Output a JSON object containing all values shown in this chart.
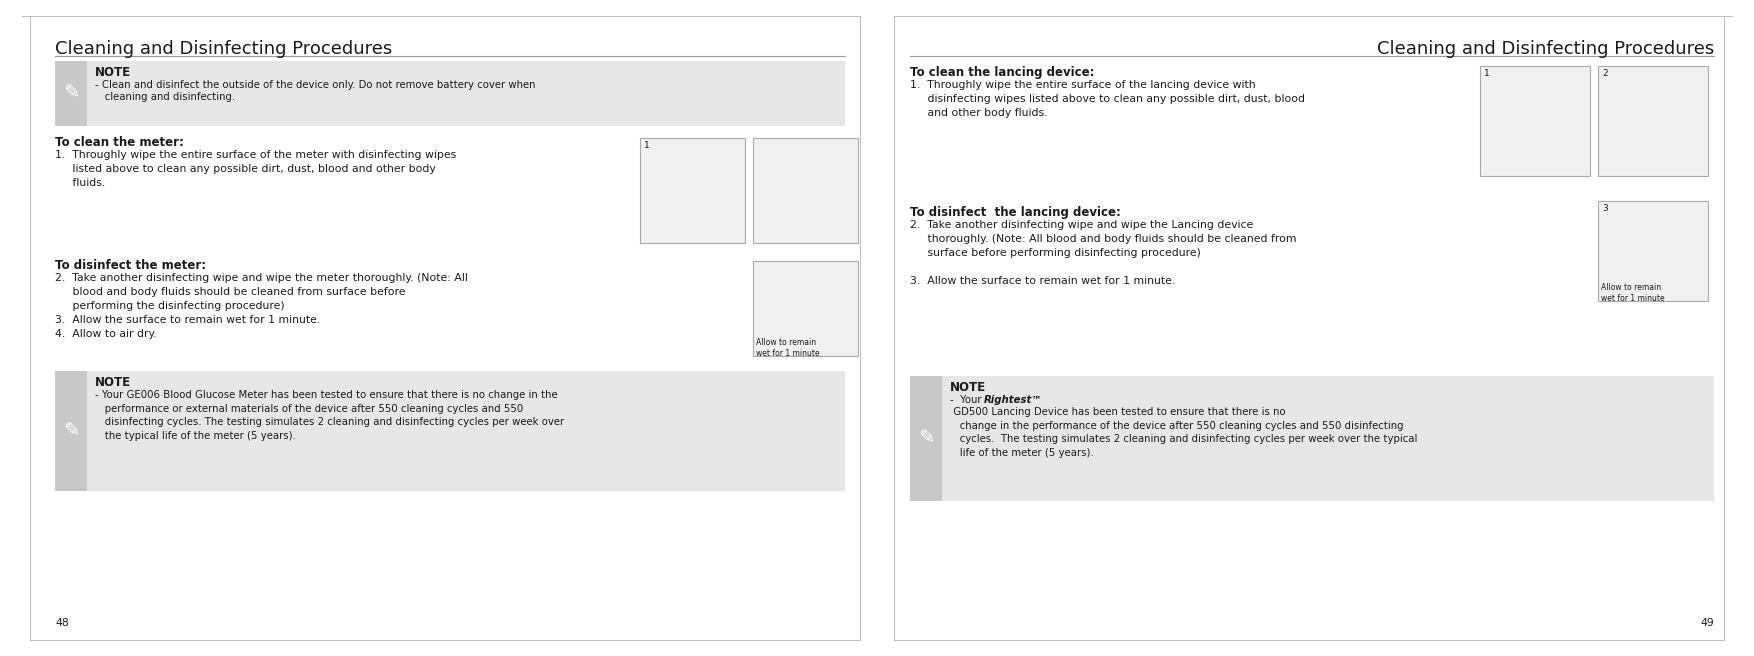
{
  "bg_color": "#ffffff",
  "note_bg": "#e6e6e6",
  "pencil_bg": "#c8c8c8",
  "text_color": "#1a1a1a",
  "line_color": "#888888",
  "img_border": "#aaaaaa",
  "img_bg": "#f0f0f0",
  "title_left": "Cleaning and Disinfecting Procedures",
  "title_right": "Cleaning and Disinfecting Procedures",
  "page_num_left": "48",
  "page_num_right": "49",
  "left_note1_title": "NOTE",
  "left_note1_line1": "- Clean and disinfect the outside of the device only. Do not remove battery cover when",
  "left_note1_line2": "   cleaning and disinfecting.",
  "left_clean_title": "To clean the meter:",
  "left_clean_body": "1.  Throughly wipe the entire surface of the meter with disinfecting wipes\n     listed above to clean any possible dirt, dust, blood and other body\n     fluids.",
  "left_disinfect_title": "To disinfect the meter:",
  "left_disinfect_body": "2.  Take another disinfecting wipe and wipe the meter thoroughly. (Note: All\n     blood and body fluids should be cleaned from surface before\n     performing the disinfecting procedure)\n3.  Allow the surface to remain wet for 1 minute.\n4.  Allow to air dry.",
  "left_note2_title": "NOTE",
  "left_note2_body": "- Your GE006 Blood Glucose Meter has been tested to ensure that there is no change in the\n   performance or external materials of the device after 550 cleaning cycles and 550\n   disinfecting cycles. The testing simulates 2 cleaning and disinfecting cycles per week over\n   the typical life of the meter (5 years).",
  "right_clean_title": "To clean the lancing device:",
  "right_clean_body": "1.  Throughly wipe the entire surface of the lancing device with\n     disinfecting wipes listed above to clean any possible dirt, dust, blood\n     and other body fluids.",
  "right_disinfect_title": "To disinfect  the lancing device:",
  "right_disinfect_body": "2.  Take another disinfecting wipe and wipe the Lancing device\n     thoroughly. (Note: All blood and body fluids should be cleaned from\n     surface before performing disinfecting procedure)\n\n3.  Allow the surface to remain wet for 1 minute.",
  "right_note_title": "NOTE",
  "right_note_body_pre": "-  Your ",
  "right_note_body_bold": "Rightest™",
  "right_note_body_post": " GD500 Lancing Device has been tested to ensure that there is no\n   change in the performance of the device after 550 cleaning cycles and 550 disinfecting\n   cycles.  The testing simulates 2 cleaning and disinfecting cycles per week over the typical\n   life of the meter (5 years).",
  "title_fontsize": 13,
  "body_fontsize": 7.8,
  "note_title_fontsize": 8.5,
  "section_title_fontsize": 8.5,
  "img_label_fontsize": 6.5
}
